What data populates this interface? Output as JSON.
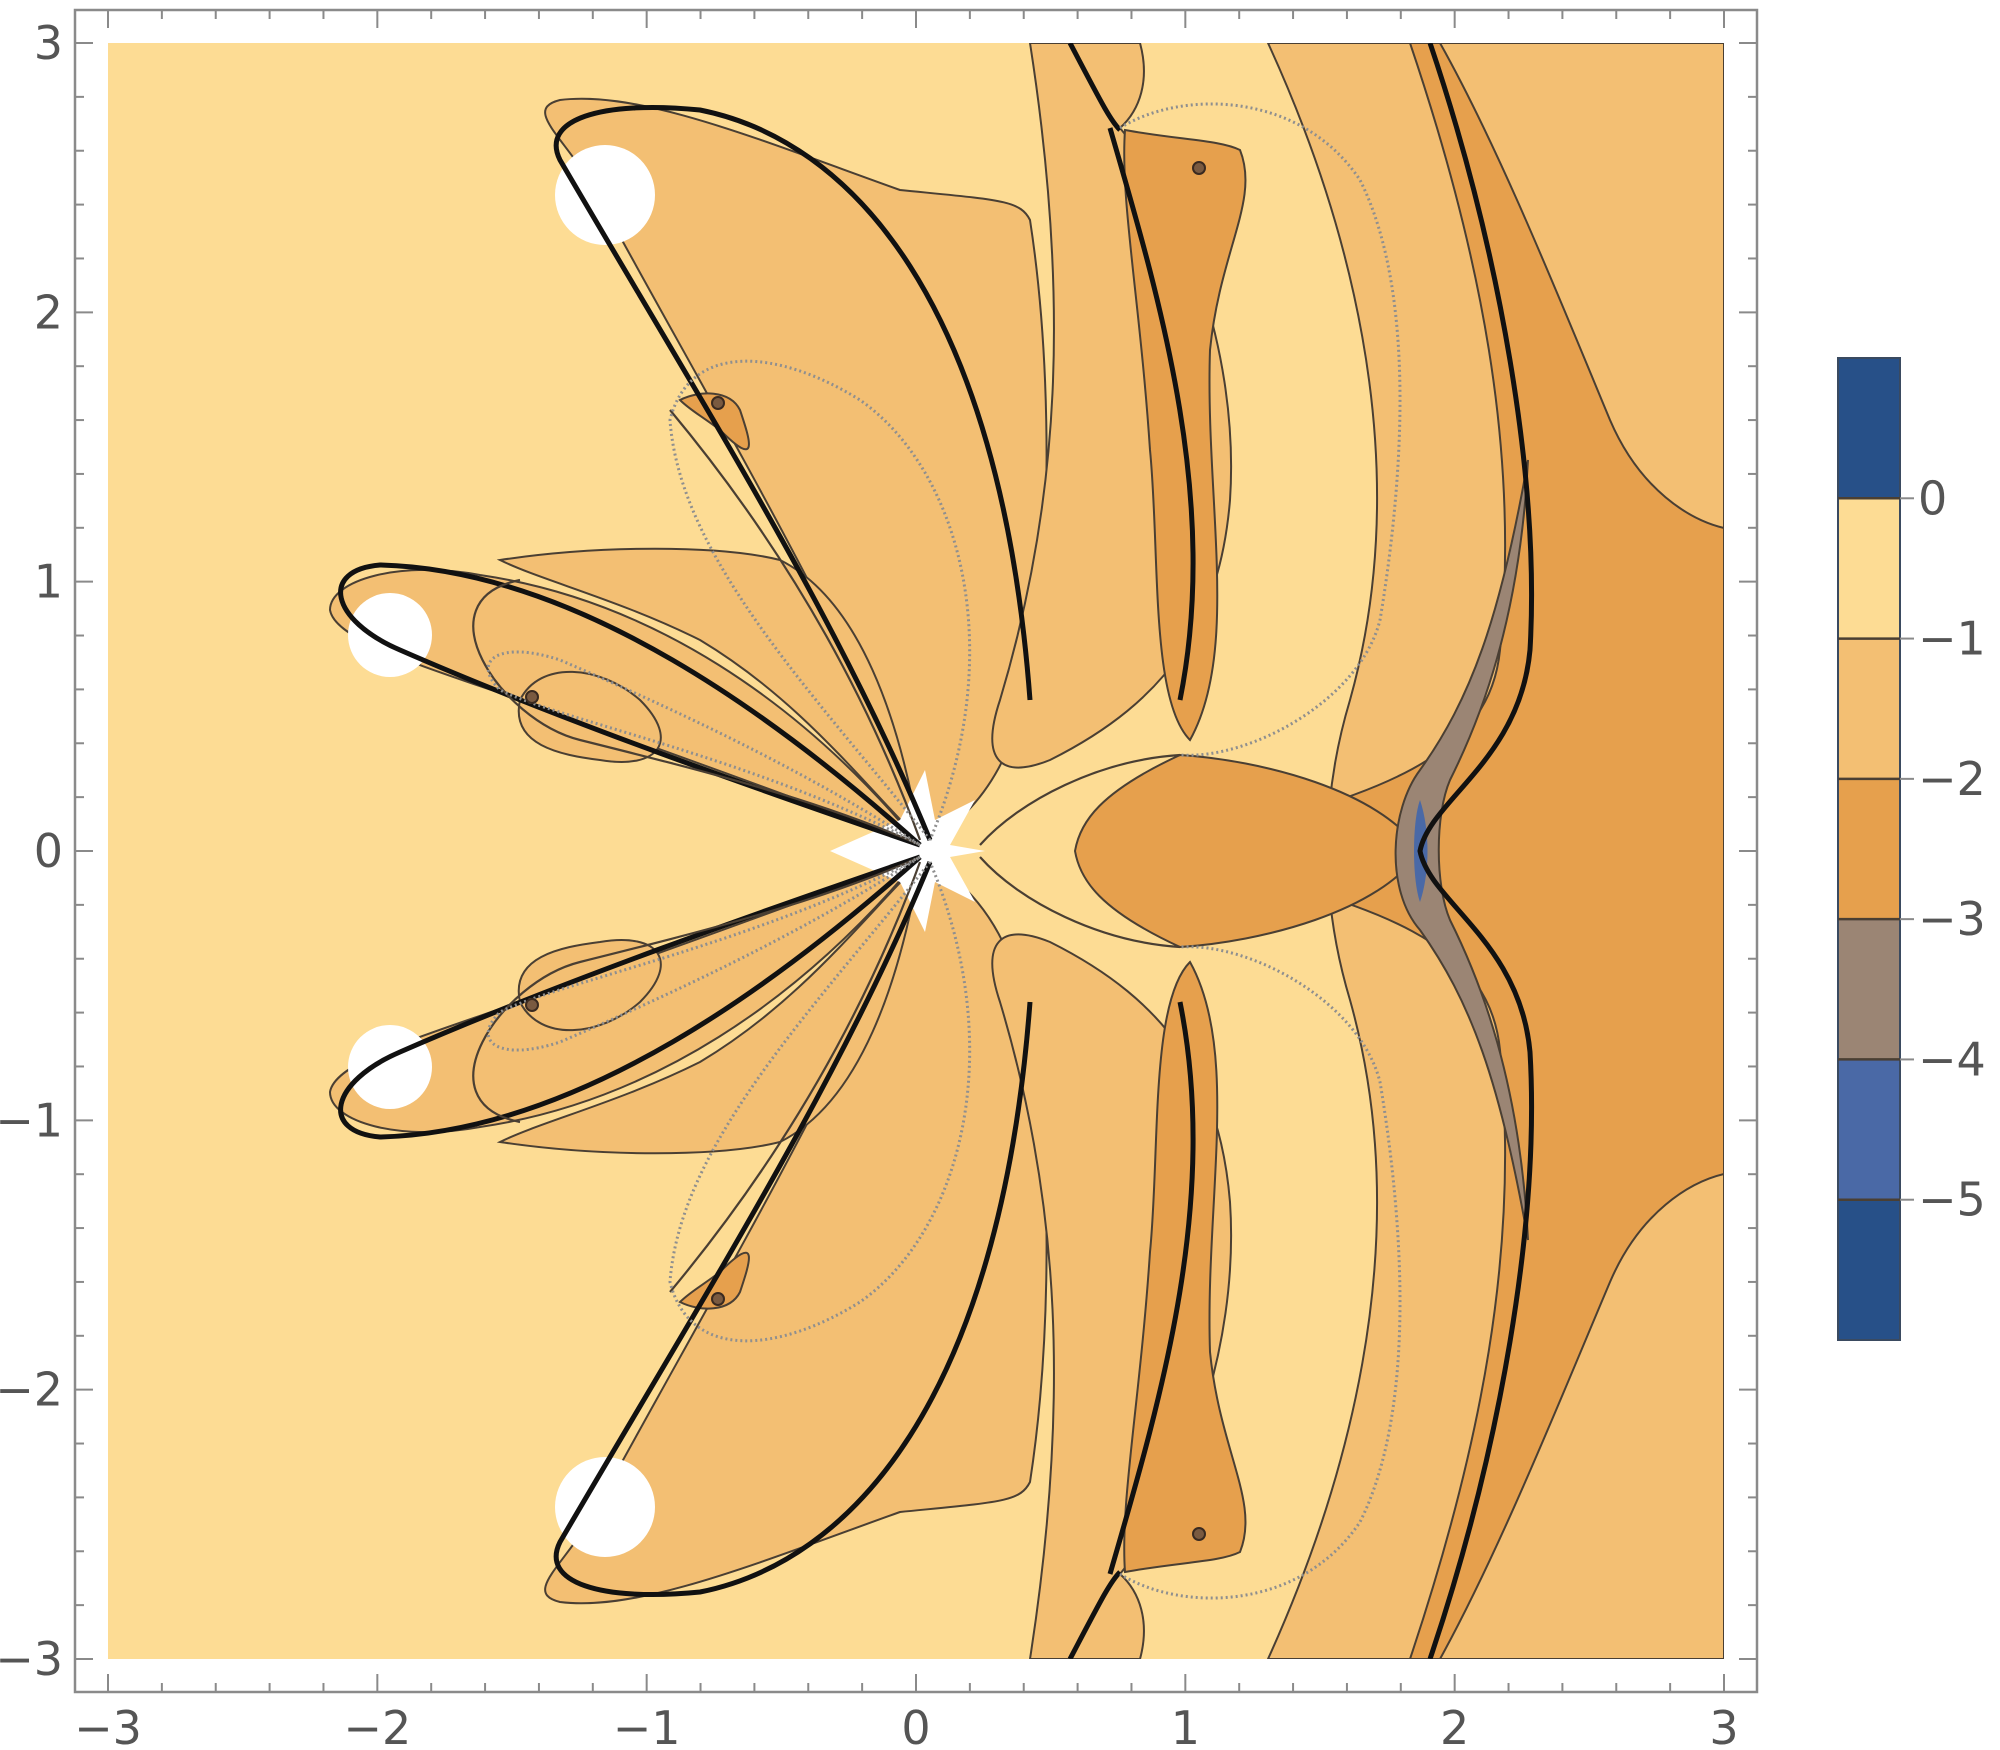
{
  "chart_data": {
    "type": "contour",
    "title": "",
    "xlabel": "",
    "ylabel": "",
    "xlim": [
      -3,
      3
    ],
    "ylim": [
      -3,
      3
    ],
    "x_ticks": [
      -3,
      -2,
      -1,
      0,
      1,
      2,
      3
    ],
    "y_ticks": [
      -3,
      -2,
      -1,
      0,
      1,
      2,
      3
    ],
    "x_tick_labels": [
      "−3",
      "−2",
      "−1",
      "0",
      "1",
      "2",
      "3"
    ],
    "y_tick_labels": [
      "−3",
      "−2",
      "−1",
      "0",
      "1",
      "2",
      "3"
    ],
    "contour_levels": [
      0,
      -1,
      -2,
      -3,
      -4,
      -5
    ],
    "legend": {
      "type": "colorbar",
      "placement": "right",
      "labels": [
        "0",
        "−1",
        "−2",
        "−3",
        "−4",
        "−5"
      ],
      "bands": [
        {
          "range": "> 0",
          "color": "#275088"
        },
        {
          "range": "-1 to 0",
          "color": "#fddc94"
        },
        {
          "range": "-2 to -1",
          "color": "#f3bf73"
        },
        {
          "range": "-3 to -2",
          "color": "#e6a04d"
        },
        {
          "range": "-4 to -3",
          "color": "#9b8574"
        },
        {
          "range": "-5 to -4",
          "color": "#4a69a6"
        },
        {
          "range": "< -5",
          "color": "#275088"
        }
      ]
    },
    "special_points": {
      "white_discs": [
        [
          -1.2,
          2.43
        ],
        [
          -1.95,
          0.8
        ],
        [
          -1.95,
          -0.8
        ],
        [
          -1.2,
          -2.43
        ]
      ],
      "saddle_points": [
        [
          -0.92,
          1.66
        ],
        [
          -0.92,
          -1.66
        ],
        [
          0.75,
          2.69
        ],
        [
          0.75,
          -2.69
        ],
        [
          0.98,
          0.37
        ],
        [
          0.98,
          -0.37
        ],
        [
          0.45,
          0.6
        ],
        [
          0.45,
          -0.6
        ]
      ],
      "small_markers": [
        [
          -0.72,
          1.66
        ],
        [
          -0.72,
          -1.66
        ],
        [
          -1.44,
          0.57
        ],
        [
          -1.44,
          -0.57
        ],
        [
          1.05,
          2.53
        ],
        [
          1.05,
          -2.53
        ]
      ]
    }
  }
}
